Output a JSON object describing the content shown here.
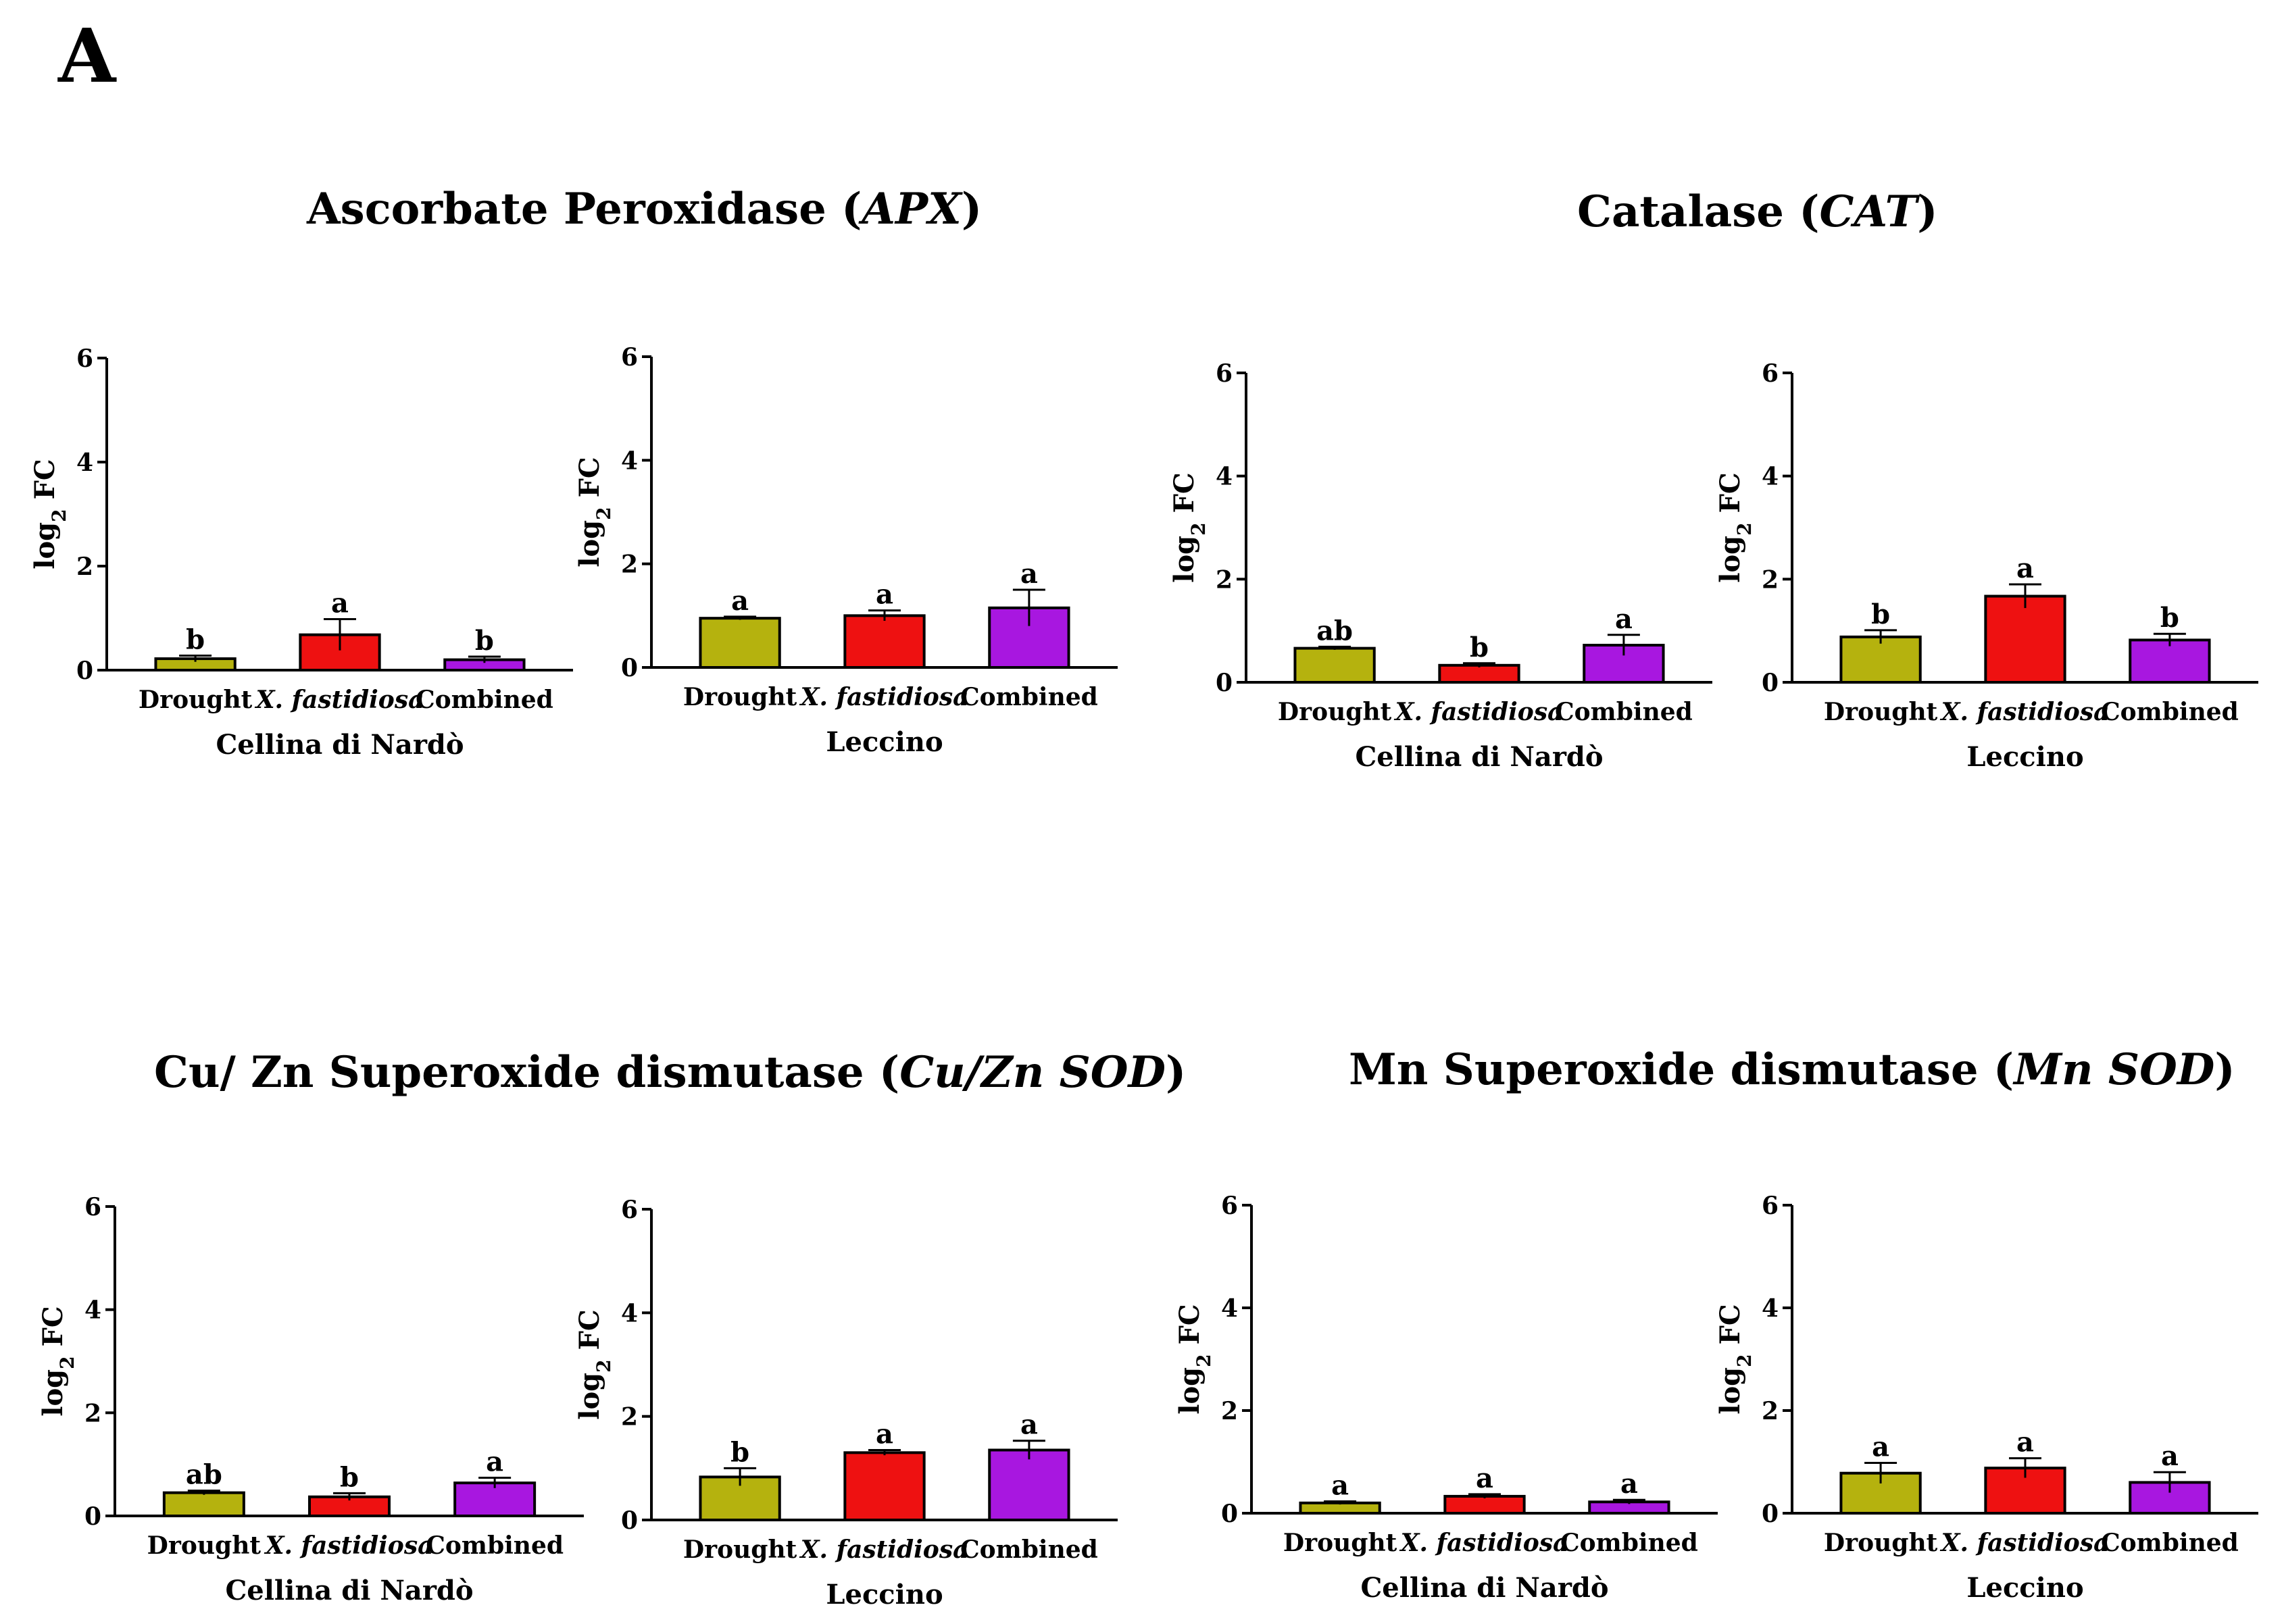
{
  "panel_letter": "A",
  "groups": [
    {
      "title_prefix": "Ascorbate Peroxidase (",
      "title_italic": "APX",
      "title_suffix": ")"
    },
    {
      "title_prefix": "Catalase (",
      "title_italic": "CAT",
      "title_suffix": ")"
    },
    {
      "title_prefix": "Cu/ Zn Superoxide dismutase (",
      "title_italic": "Cu/Zn SOD",
      "title_suffix": ")"
    },
    {
      "title_prefix": "Mn Superoxide dismutase (",
      "title_italic": "Mn SOD",
      "title_suffix": ")"
    }
  ],
  "colors": {
    "Drought": "#b5b20e",
    "X. fastidiosa": "#ee1111",
    "Combined": "#a817e0",
    "stroke": "#000000"
  },
  "chart_data": [
    {
      "type": "bar",
      "gene": "APX",
      "cultivar": "Cellina di Nardò",
      "ylabel_main": "log",
      "ylabel_sub": "2",
      "ylabel_rest": " FC",
      "categories": [
        "Drought",
        "X. fastidiosa",
        "Combined"
      ],
      "values": [
        0.22,
        0.68,
        0.2
      ],
      "errors": [
        0.06,
        0.3,
        0.06
      ],
      "letters": [
        "b",
        "a",
        "b"
      ],
      "ylim": [
        0,
        6
      ],
      "yticks": [
        0,
        2,
        4,
        6
      ]
    },
    {
      "type": "bar",
      "gene": "APX",
      "cultivar": "Leccino",
      "ylabel_main": "log",
      "ylabel_sub": "2",
      "ylabel_rest": " FC",
      "categories": [
        "Drought",
        "X. fastidiosa",
        "Combined"
      ],
      "values": [
        0.95,
        1.0,
        1.15
      ],
      "errors": [
        0.03,
        0.1,
        0.35
      ],
      "letters": [
        "a",
        "a",
        "a"
      ],
      "ylim": [
        0,
        6
      ],
      "yticks": [
        0,
        2,
        4,
        6
      ]
    },
    {
      "type": "bar",
      "gene": "CAT",
      "cultivar": "Cellina di Nardò",
      "ylabel_main": "log",
      "ylabel_sub": "2",
      "ylabel_rest": " FC",
      "categories": [
        "Drought",
        "X. fastidiosa",
        "Combined"
      ],
      "values": [
        0.66,
        0.33,
        0.72
      ],
      "errors": [
        0.03,
        0.04,
        0.2
      ],
      "letters": [
        "ab",
        "b",
        "a"
      ],
      "ylim": [
        0,
        6
      ],
      "yticks": [
        0,
        2,
        4,
        6
      ]
    },
    {
      "type": "bar",
      "gene": "CAT",
      "cultivar": "Leccino",
      "ylabel_main": "log",
      "ylabel_sub": "2",
      "ylabel_rest": " FC",
      "categories": [
        "Drought",
        "X. fastidiosa",
        "Combined"
      ],
      "values": [
        0.88,
        1.67,
        0.82
      ],
      "errors": [
        0.13,
        0.23,
        0.12
      ],
      "letters": [
        "b",
        "a",
        "b"
      ],
      "ylim": [
        0,
        6
      ],
      "yticks": [
        0,
        2,
        4,
        6
      ]
    },
    {
      "type": "bar",
      "gene": "Cu/Zn SOD",
      "cultivar": "Cellina di Nardò",
      "ylabel_main": "log",
      "ylabel_sub": "2",
      "ylabel_rest": " FC",
      "categories": [
        "Drought",
        "X. fastidiosa",
        "Combined"
      ],
      "values": [
        0.45,
        0.37,
        0.64
      ],
      "errors": [
        0.04,
        0.07,
        0.1
      ],
      "letters": [
        "ab",
        "b",
        "a"
      ],
      "ylim": [
        0,
        6
      ],
      "yticks": [
        0,
        2,
        4,
        6
      ]
    },
    {
      "type": "bar",
      "gene": "Cu/Zn SOD",
      "cultivar": "Leccino",
      "ylabel_main": "log",
      "ylabel_sub": "2",
      "ylabel_rest": " FC",
      "categories": [
        "Drought",
        "X. fastidiosa",
        "Combined"
      ],
      "values": [
        0.83,
        1.3,
        1.35
      ],
      "errors": [
        0.17,
        0.05,
        0.18
      ],
      "letters": [
        "b",
        "a",
        "a"
      ],
      "ylim": [
        0,
        6
      ],
      "yticks": [
        0,
        2,
        4,
        6
      ]
    },
    {
      "type": "bar",
      "gene": "Mn SOD",
      "cultivar": "Cellina di Nardò",
      "ylabel_main": "log",
      "ylabel_sub": "2",
      "ylabel_rest": " FC",
      "categories": [
        "Drought",
        "X. fastidiosa",
        "Combined"
      ],
      "values": [
        0.2,
        0.33,
        0.22
      ],
      "errors": [
        0.03,
        0.04,
        0.04
      ],
      "letters": [
        "a",
        "a",
        "a"
      ],
      "ylim": [
        0,
        6
      ],
      "yticks": [
        0,
        2,
        4,
        6
      ]
    },
    {
      "type": "bar",
      "gene": "Mn SOD",
      "cultivar": "Leccino",
      "ylabel_main": "log",
      "ylabel_sub": "2",
      "ylabel_rest": " FC",
      "categories": [
        "Drought",
        "X. fastidiosa",
        "Combined"
      ],
      "values": [
        0.78,
        0.88,
        0.6
      ],
      "errors": [
        0.2,
        0.19,
        0.2
      ],
      "letters": [
        "a",
        "a",
        "a"
      ],
      "ylim": [
        0,
        6
      ],
      "yticks": [
        0,
        2,
        4,
        6
      ]
    }
  ]
}
